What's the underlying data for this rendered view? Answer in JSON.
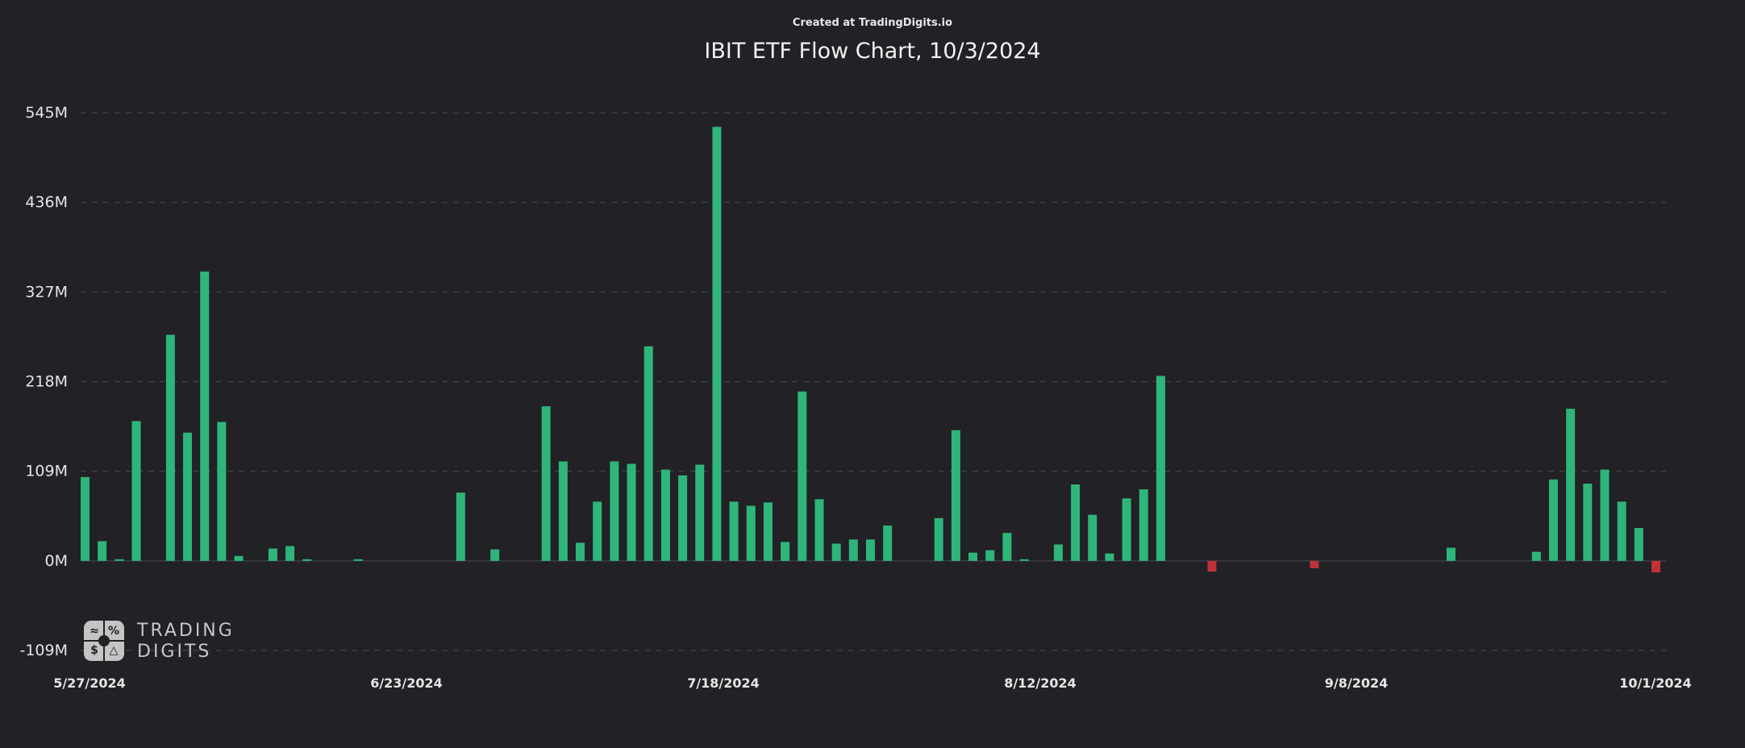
{
  "header": {
    "credit": "Created at TradingDigits.io",
    "title": "IBIT ETF Flow Chart, 10/3/2024"
  },
  "logo": {
    "line1": "TRADING",
    "line2": "DIGITS",
    "glyphs": [
      "≈",
      "%",
      "$",
      "△"
    ]
  },
  "colors": {
    "background": "#212126",
    "inflow": "#2fb57a",
    "outflow": "#c0313a",
    "grid": "#4a4a52"
  },
  "chart_data": {
    "type": "bar",
    "title": "IBIT ETF Flow Chart, 10/3/2024",
    "xlabel": "",
    "ylabel": "",
    "ylim": [
      -109,
      545
    ],
    "y_ticks": [
      545,
      436,
      327,
      218,
      109,
      0,
      -109
    ],
    "y_tick_labels": [
      "545M",
      "436M",
      "327M",
      "218M",
      "109M",
      "0M",
      "-109M"
    ],
    "x_tick_labels": [
      "5/27/2024",
      "6/23/2024",
      "7/18/2024",
      "8/12/2024",
      "9/8/2024",
      "10/1/2024"
    ],
    "grid": true,
    "unit": "M",
    "values": [
      102,
      24,
      2,
      170,
      0,
      275,
      156,
      352,
      169,
      6,
      0,
      15,
      18,
      2,
      0,
      0,
      2,
      0,
      0,
      0,
      0,
      0,
      83,
      0,
      14,
      0,
      0,
      188,
      121,
      22,
      72,
      121,
      118,
      261,
      111,
      104,
      117,
      528,
      72,
      67,
      71,
      23,
      206,
      75,
      21,
      26,
      26,
      43,
      0,
      0,
      52,
      159,
      10,
      13,
      34,
      2,
      0,
      20,
      93,
      56,
      9,
      76,
      87,
      225,
      0,
      0,
      -13,
      0,
      0,
      0,
      0,
      0,
      -9,
      0,
      0,
      0,
      0,
      0,
      0,
      0,
      16,
      0,
      0,
      0,
      0,
      11,
      99,
      185,
      94,
      111,
      72,
      40,
      -14
    ]
  }
}
